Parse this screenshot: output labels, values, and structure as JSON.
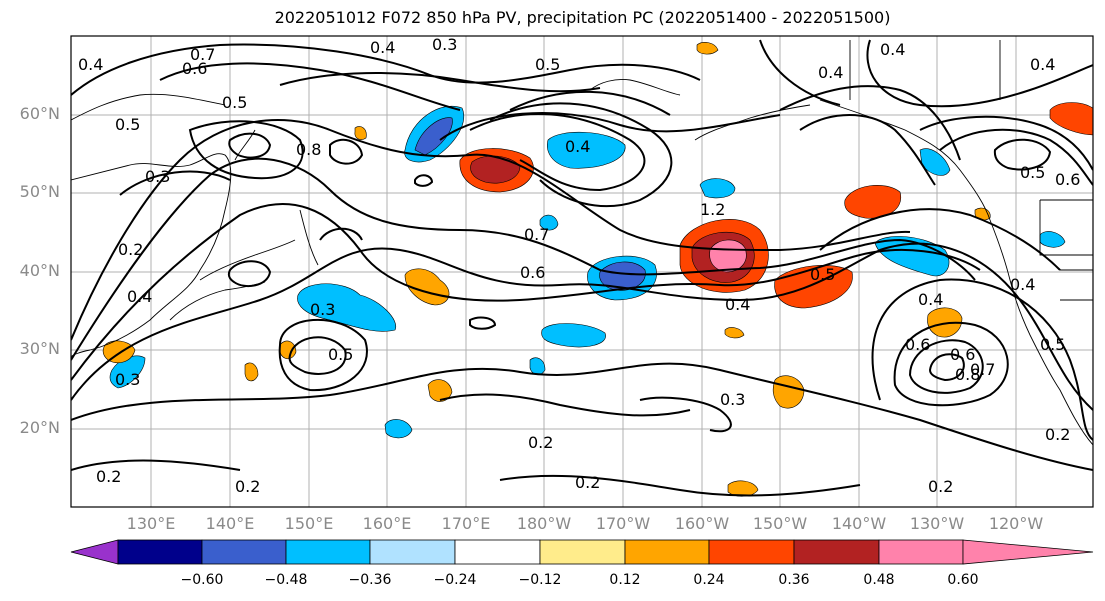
{
  "title": "2022051012 F072 850 hPa PV, precipitation PC (2022051400 - 2022051500)",
  "lat_ticks": [
    "60°N",
    "50°N",
    "40°N",
    "30°N",
    "20°N"
  ],
  "lon_ticks": [
    "130°E",
    "140°E",
    "150°E",
    "160°E",
    "170°E",
    "180°W",
    "170°W",
    "160°W",
    "150°W",
    "140°W",
    "130°W",
    "120°W"
  ],
  "colorbar": {
    "colors": [
      "#9932cc",
      "#00008b",
      "#3a5fcd",
      "#00bfff",
      "#b0e2ff",
      "#ffffff",
      "#ffec8b",
      "#ffa500",
      "#ff4500",
      "#b22222",
      "#ff82ab"
    ],
    "labels": [
      "−0.60",
      "−0.48",
      "−0.36",
      "−0.24",
      "−0.12",
      "0.12",
      "0.24",
      "0.36",
      "0.48",
      "0.60"
    ]
  },
  "contour_labels": [
    {
      "text": "0.4",
      "name": "contour-label-1"
    },
    {
      "text": "0.3",
      "name": "contour-label-2"
    },
    {
      "text": "0.5",
      "name": "contour-label-3"
    },
    {
      "text": "0.4",
      "name": "contour-label-4"
    },
    {
      "text": "0.7",
      "name": "contour-label-5"
    },
    {
      "text": "0.6",
      "name": "contour-label-6"
    },
    {
      "text": "0.5",
      "name": "contour-label-7"
    },
    {
      "text": "0.5",
      "name": "contour-label-8"
    },
    {
      "text": "0.8",
      "name": "contour-label-9"
    },
    {
      "text": "0.3",
      "name": "contour-label-10"
    },
    {
      "text": "0.2",
      "name": "contour-label-11"
    },
    {
      "text": "0.4",
      "name": "contour-label-12"
    },
    {
      "text": "0.3",
      "name": "contour-label-13"
    },
    {
      "text": "0.5",
      "name": "contour-label-14"
    },
    {
      "text": "0.3",
      "name": "contour-label-15"
    },
    {
      "text": "0.4",
      "name": "contour-label-16"
    },
    {
      "text": "0.7",
      "name": "contour-label-17"
    },
    {
      "text": "0.6",
      "name": "contour-label-18"
    },
    {
      "text": "1.2",
      "name": "contour-label-19"
    },
    {
      "text": "0.5",
      "name": "contour-label-20"
    },
    {
      "text": "0.4",
      "name": "contour-label-21"
    },
    {
      "text": "0.4",
      "name": "contour-label-22"
    },
    {
      "text": "0.5",
      "name": "contour-label-23"
    },
    {
      "text": "0.6",
      "name": "contour-label-24"
    },
    {
      "text": "0.4",
      "name": "contour-label-25"
    },
    {
      "text": "0.6",
      "name": "contour-label-26"
    },
    {
      "text": "0.8",
      "name": "contour-label-27"
    },
    {
      "text": "0.7",
      "name": "contour-label-28"
    },
    {
      "text": "0.5",
      "name": "contour-label-29"
    },
    {
      "text": "0.2",
      "name": "contour-label-30"
    },
    {
      "text": "0.3",
      "name": "contour-label-31"
    },
    {
      "text": "0.2",
      "name": "contour-label-32"
    },
    {
      "text": "0.2",
      "name": "contour-label-33"
    },
    {
      "text": "0.2",
      "name": "contour-label-34"
    },
    {
      "text": "0.2",
      "name": "contour-label-35"
    },
    {
      "text": "0.2",
      "name": "contour-label-36"
    },
    {
      "text": "0.4",
      "name": "contour-label-37"
    },
    {
      "text": "0.6",
      "name": "contour-label-38"
    },
    {
      "text": "0.4",
      "name": "contour-label-39"
    },
    {
      "text": "0.4",
      "name": "contour-label-40"
    }
  ]
}
